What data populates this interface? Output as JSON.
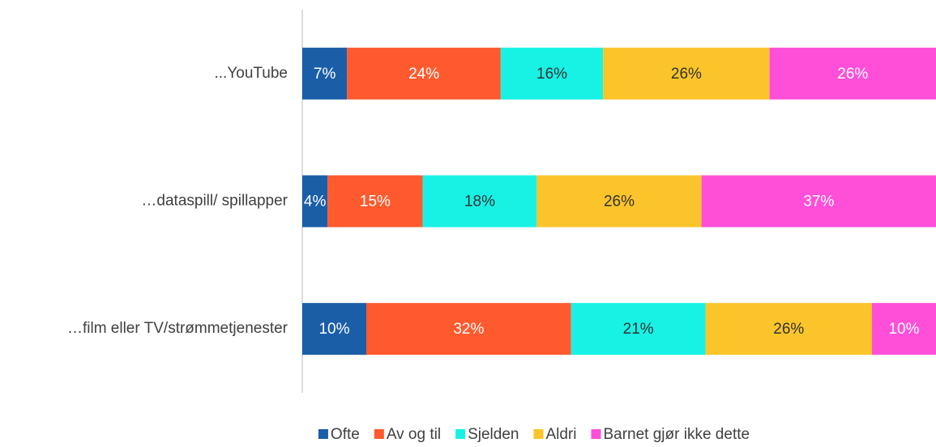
{
  "chart_data": {
    "type": "bar",
    "orientation": "horizontal",
    "stacking": "percent",
    "categories": [
      "...YouTube",
      "…dataspill/ spillapper",
      "…film eller TV/strømmetjenester"
    ],
    "series": [
      {
        "name": "Ofte",
        "color": "#1b5ea8",
        "label_color": "#ffffff",
        "values": [
          7,
          4,
          10
        ],
        "value_labels": [
          "7%",
          "4%",
          "10%"
        ]
      },
      {
        "name": "Av og til",
        "color": "#ff5a2e",
        "label_color": "#ffffff",
        "values": [
          24,
          15,
          32
        ],
        "value_labels": [
          "24%",
          "15%",
          "32%"
        ]
      },
      {
        "name": "Sjelden",
        "color": "#17f2e5",
        "label_color": "#333333",
        "values": [
          16,
          18,
          21
        ],
        "value_labels": [
          "16%",
          "18%",
          "21%"
        ]
      },
      {
        "name": "Aldri",
        "color": "#fbc42a",
        "label_color": "#333333",
        "values": [
          26,
          26,
          26
        ],
        "value_labels": [
          "26%",
          "26%",
          "26%"
        ]
      },
      {
        "name": "Barnet gjør ikke dette",
        "color": "#ff4fd8",
        "label_color": "#ffffff",
        "values": [
          26,
          37,
          10
        ],
        "value_labels": [
          "26%",
          "37%",
          "10%"
        ]
      }
    ],
    "legend": "bottom"
  }
}
